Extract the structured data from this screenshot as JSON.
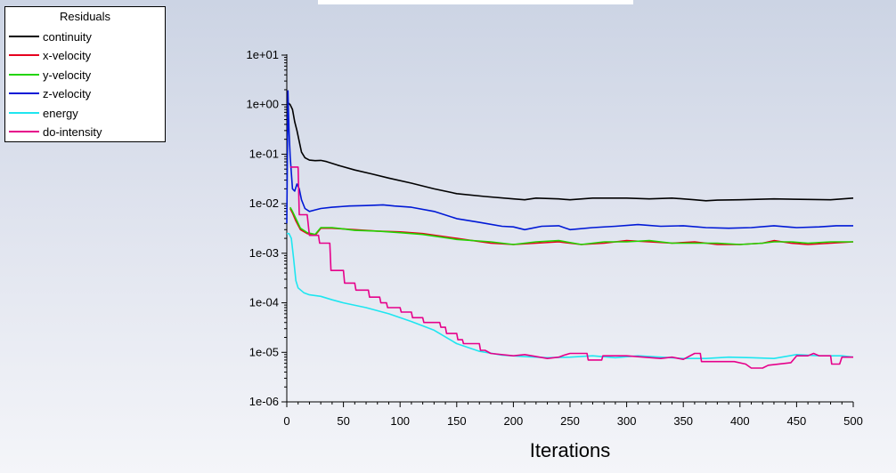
{
  "chart_data": {
    "type": "line",
    "title": "",
    "xlabel": "Iterations",
    "ylabel": "",
    "yscale": "log",
    "xlim": [
      0,
      500
    ],
    "ylim_exp": [
      -6,
      1
    ],
    "x_ticks": [
      0,
      50,
      100,
      150,
      200,
      250,
      300,
      350,
      400,
      450,
      500
    ],
    "y_ticks": [
      "1e-06",
      "1e-05",
      "1e-04",
      "1e-03",
      "1e-02",
      "1e-01",
      "1e+00",
      "1e+01"
    ],
    "legend_title": "Residuals",
    "series": [
      {
        "name": "continuity",
        "color": "#000000",
        "points": [
          [
            0,
            1
          ],
          [
            1,
            1.1
          ],
          [
            3,
            1.0
          ],
          [
            5,
            0.8
          ],
          [
            7,
            0.45
          ],
          [
            9,
            0.3
          ],
          [
            11,
            0.18
          ],
          [
            13,
            0.11
          ],
          [
            16,
            0.085
          ],
          [
            20,
            0.076
          ],
          [
            25,
            0.074
          ],
          [
            30,
            0.075
          ],
          [
            35,
            0.071
          ],
          [
            45,
            0.06
          ],
          [
            60,
            0.048
          ],
          [
            75,
            0.04
          ],
          [
            90,
            0.033
          ],
          [
            110,
            0.026
          ],
          [
            130,
            0.02
          ],
          [
            150,
            0.016
          ],
          [
            175,
            0.014
          ],
          [
            200,
            0.0125
          ],
          [
            210,
            0.012
          ],
          [
            220,
            0.013
          ],
          [
            240,
            0.0125
          ],
          [
            250,
            0.012
          ],
          [
            270,
            0.013
          ],
          [
            300,
            0.013
          ],
          [
            320,
            0.0125
          ],
          [
            340,
            0.013
          ],
          [
            360,
            0.012
          ],
          [
            370,
            0.0115
          ],
          [
            380,
            0.0118
          ],
          [
            400,
            0.012
          ],
          [
            430,
            0.0125
          ],
          [
            460,
            0.0122
          ],
          [
            480,
            0.012
          ],
          [
            500,
            0.013
          ]
        ]
      },
      {
        "name": "x-velocity",
        "color": "#e6001e",
        "points": [
          [
            3,
            0.008
          ],
          [
            5,
            0.0065
          ],
          [
            8,
            0.0045
          ],
          [
            12,
            0.003
          ],
          [
            18,
            0.0025
          ],
          [
            25,
            0.0023
          ],
          [
            30,
            0.0032
          ],
          [
            40,
            0.0032
          ],
          [
            60,
            0.003
          ],
          [
            80,
            0.0028
          ],
          [
            100,
            0.0027
          ],
          [
            120,
            0.0025
          ],
          [
            150,
            0.002
          ],
          [
            180,
            0.0016
          ],
          [
            200,
            0.0015
          ],
          [
            220,
            0.0016
          ],
          [
            240,
            0.0017
          ],
          [
            260,
            0.0015
          ],
          [
            280,
            0.0016
          ],
          [
            300,
            0.0018
          ],
          [
            320,
            0.0017
          ],
          [
            340,
            0.0016
          ],
          [
            360,
            0.0017
          ],
          [
            380,
            0.0015
          ],
          [
            400,
            0.0015
          ],
          [
            420,
            0.0016
          ],
          [
            430,
            0.0018
          ],
          [
            445,
            0.0016
          ],
          [
            460,
            0.0015
          ],
          [
            480,
            0.0016
          ],
          [
            500,
            0.0017
          ]
        ]
      },
      {
        "name": "y-velocity",
        "color": "#22d400",
        "points": [
          [
            3,
            0.0085
          ],
          [
            5,
            0.007
          ],
          [
            8,
            0.005
          ],
          [
            12,
            0.0032
          ],
          [
            18,
            0.0026
          ],
          [
            25,
            0.0024
          ],
          [
            30,
            0.0033
          ],
          [
            40,
            0.0033
          ],
          [
            60,
            0.0029
          ],
          [
            80,
            0.0028
          ],
          [
            100,
            0.0026
          ],
          [
            120,
            0.0024
          ],
          [
            150,
            0.0019
          ],
          [
            180,
            0.0017
          ],
          [
            200,
            0.0015
          ],
          [
            220,
            0.0017
          ],
          [
            240,
            0.0018
          ],
          [
            260,
            0.0015
          ],
          [
            280,
            0.0017
          ],
          [
            300,
            0.0017
          ],
          [
            320,
            0.0018
          ],
          [
            340,
            0.0016
          ],
          [
            360,
            0.0016
          ],
          [
            380,
            0.0016
          ],
          [
            400,
            0.0015
          ],
          [
            420,
            0.0016
          ],
          [
            430,
            0.0017
          ],
          [
            445,
            0.0017
          ],
          [
            460,
            0.0016
          ],
          [
            480,
            0.0017
          ],
          [
            500,
            0.0017
          ]
        ]
      },
      {
        "name": "z-velocity",
        "color": "#0019d6",
        "points": [
          [
            0,
            0.004
          ],
          [
            1,
            1.9
          ],
          [
            2,
            0.3
          ],
          [
            3,
            0.09
          ],
          [
            5,
            0.02
          ],
          [
            7,
            0.018
          ],
          [
            9,
            0.025
          ],
          [
            11,
            0.02
          ],
          [
            13,
            0.012
          ],
          [
            16,
            0.008
          ],
          [
            20,
            0.007
          ],
          [
            25,
            0.0075
          ],
          [
            30,
            0.008
          ],
          [
            40,
            0.0085
          ],
          [
            55,
            0.009
          ],
          [
            70,
            0.0092
          ],
          [
            85,
            0.0095
          ],
          [
            95,
            0.009
          ],
          [
            110,
            0.0085
          ],
          [
            130,
            0.007
          ],
          [
            150,
            0.005
          ],
          [
            170,
            0.0042
          ],
          [
            190,
            0.0035
          ],
          [
            200,
            0.0034
          ],
          [
            210,
            0.003
          ],
          [
            225,
            0.0035
          ],
          [
            240,
            0.0036
          ],
          [
            250,
            0.003
          ],
          [
            270,
            0.0033
          ],
          [
            290,
            0.0035
          ],
          [
            310,
            0.0038
          ],
          [
            330,
            0.0035
          ],
          [
            350,
            0.0036
          ],
          [
            370,
            0.0033
          ],
          [
            390,
            0.0032
          ],
          [
            410,
            0.0033
          ],
          [
            430,
            0.0036
          ],
          [
            450,
            0.0033
          ],
          [
            470,
            0.0034
          ],
          [
            485,
            0.0036
          ],
          [
            500,
            0.0036
          ]
        ]
      },
      {
        "name": "energy",
        "color": "#1ee6f0",
        "points": [
          [
            0,
            0.0025
          ],
          [
            2,
            0.0025
          ],
          [
            4,
            0.002
          ],
          [
            6,
            0.0008
          ],
          [
            8,
            0.00028
          ],
          [
            10,
            0.0002
          ],
          [
            15,
            0.00016
          ],
          [
            20,
            0.000145
          ],
          [
            30,
            0.000135
          ],
          [
            40,
            0.000115
          ],
          [
            50,
            0.0001
          ],
          [
            70,
            8e-05
          ],
          [
            90,
            6e-05
          ],
          [
            110,
            4.2e-05
          ],
          [
            130,
            2.8e-05
          ],
          [
            150,
            1.5e-05
          ],
          [
            170,
            1.05e-05
          ],
          [
            190,
            8.8e-06
          ],
          [
            210,
            8.2e-06
          ],
          [
            230,
            7.8e-06
          ],
          [
            250,
            8e-06
          ],
          [
            270,
            8.5e-06
          ],
          [
            290,
            7.8e-06
          ],
          [
            310,
            8.5e-06
          ],
          [
            330,
            8e-06
          ],
          [
            350,
            7.5e-06
          ],
          [
            370,
            7.5e-06
          ],
          [
            390,
            8e-06
          ],
          [
            410,
            7.8e-06
          ],
          [
            430,
            7.5e-06
          ],
          [
            450,
            9e-06
          ],
          [
            470,
            8.5e-06
          ],
          [
            490,
            8.5e-06
          ],
          [
            500,
            8e-06
          ]
        ]
      },
      {
        "name": "do-intensity",
        "color": "#e6008a",
        "points": [
          [
            3,
            0.055
          ],
          [
            10,
            0.055
          ],
          [
            11,
            0.006
          ],
          [
            18,
            0.006
          ],
          [
            20,
            0.0023
          ],
          [
            28,
            0.0023
          ],
          [
            29,
            0.0016
          ],
          [
            38,
            0.0016
          ],
          [
            39,
            0.00045
          ],
          [
            50,
            0.00045
          ],
          [
            51,
            0.00025
          ],
          [
            60,
            0.00025
          ],
          [
            61,
            0.00018
          ],
          [
            72,
            0.00018
          ],
          [
            73,
            0.00013
          ],
          [
            82,
            0.00013
          ],
          [
            83,
            0.0001
          ],
          [
            88,
            0.0001
          ],
          [
            89,
            8e-05
          ],
          [
            100,
            8e-05
          ],
          [
            101,
            6.5e-05
          ],
          [
            110,
            6.5e-05
          ],
          [
            111,
            5e-05
          ],
          [
            120,
            5e-05
          ],
          [
            121,
            4e-05
          ],
          [
            135,
            4e-05
          ],
          [
            136,
            3.2e-05
          ],
          [
            140,
            3.2e-05
          ],
          [
            141,
            2.4e-05
          ],
          [
            150,
            2.4e-05
          ],
          [
            151,
            1.8e-05
          ],
          [
            155,
            1.8e-05
          ],
          [
            156,
            1.5e-05
          ],
          [
            170,
            1.5e-05
          ],
          [
            171,
            1.1e-05
          ],
          [
            175,
            1.1e-05
          ],
          [
            180,
            9.5e-06
          ],
          [
            200,
            8.5e-06
          ],
          [
            210,
            9e-06
          ],
          [
            230,
            7.5e-06
          ],
          [
            240,
            8e-06
          ],
          [
            245,
            8.8e-06
          ],
          [
            250,
            9.5e-06
          ],
          [
            265,
            9.5e-06
          ],
          [
            266,
            7e-06
          ],
          [
            278,
            7e-06
          ],
          [
            279,
            8.5e-06
          ],
          [
            300,
            8.5e-06
          ],
          [
            330,
            7.5e-06
          ],
          [
            340,
            8e-06
          ],
          [
            350,
            7.2e-06
          ],
          [
            360,
            9.5e-06
          ],
          [
            365,
            9.5e-06
          ],
          [
            366,
            6.5e-06
          ],
          [
            395,
            6.5e-06
          ],
          [
            405,
            5.8e-06
          ],
          [
            410,
            4.8e-06
          ],
          [
            420,
            4.8e-06
          ],
          [
            425,
            5.5e-06
          ],
          [
            445,
            6.2e-06
          ],
          [
            450,
            8.5e-06
          ],
          [
            460,
            8.5e-06
          ],
          [
            465,
            9.5e-06
          ],
          [
            470,
            8.5e-06
          ],
          [
            480,
            8.5e-06
          ],
          [
            481,
            5.8e-06
          ],
          [
            488,
            5.8e-06
          ],
          [
            490,
            8e-06
          ],
          [
            500,
            8e-06
          ]
        ]
      }
    ]
  }
}
